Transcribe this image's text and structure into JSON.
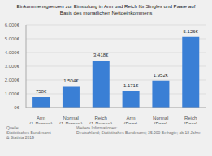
{
  "chart_data": {
    "type": "bar",
    "title": "Einkommensgrenzen zur Einstufung in Arm und Reich für Singles und Paare auf\nBasis des monatlichen Nettoeinkommens",
    "categories": [
      "Arm\n(1-Person)",
      "Normal\n(1-Person)",
      "Reich\n(1-Person)",
      "Arm\n(Paar)",
      "Normal\n(Paar)",
      "Reich\n(Paar)"
    ],
    "values": [
      758,
      1504,
      3418,
      1171,
      1952,
      5126
    ],
    "value_labels": [
      "758€",
      "1.504€",
      "3.418€",
      "1.171€",
      "1.952€",
      "5.126€"
    ],
    "data_labels": true,
    "color": "#3a7fd5",
    "ylim": [
      0,
      6000
    ],
    "yticks": [
      {
        "value": 0,
        "label": "0€"
      },
      {
        "value": 1000,
        "label": "1.000€"
      },
      {
        "value": 2000,
        "label": "2.000€"
      },
      {
        "value": 3000,
        "label": "3.000€"
      },
      {
        "value": 4000,
        "label": "4.000€"
      },
      {
        "value": 5000,
        "label": "5.000€"
      },
      {
        "value": 6000,
        "label": "6.000€"
      }
    ],
    "grid": true,
    "annotations": [
      "Quelle:\nStatistisches Bundesamt\n& Statista 2019",
      "Weitere Informationen:\nDeutschland; Statistisches Bundesamt; 35.000 Befragte; ab 18 Jahre"
    ]
  }
}
